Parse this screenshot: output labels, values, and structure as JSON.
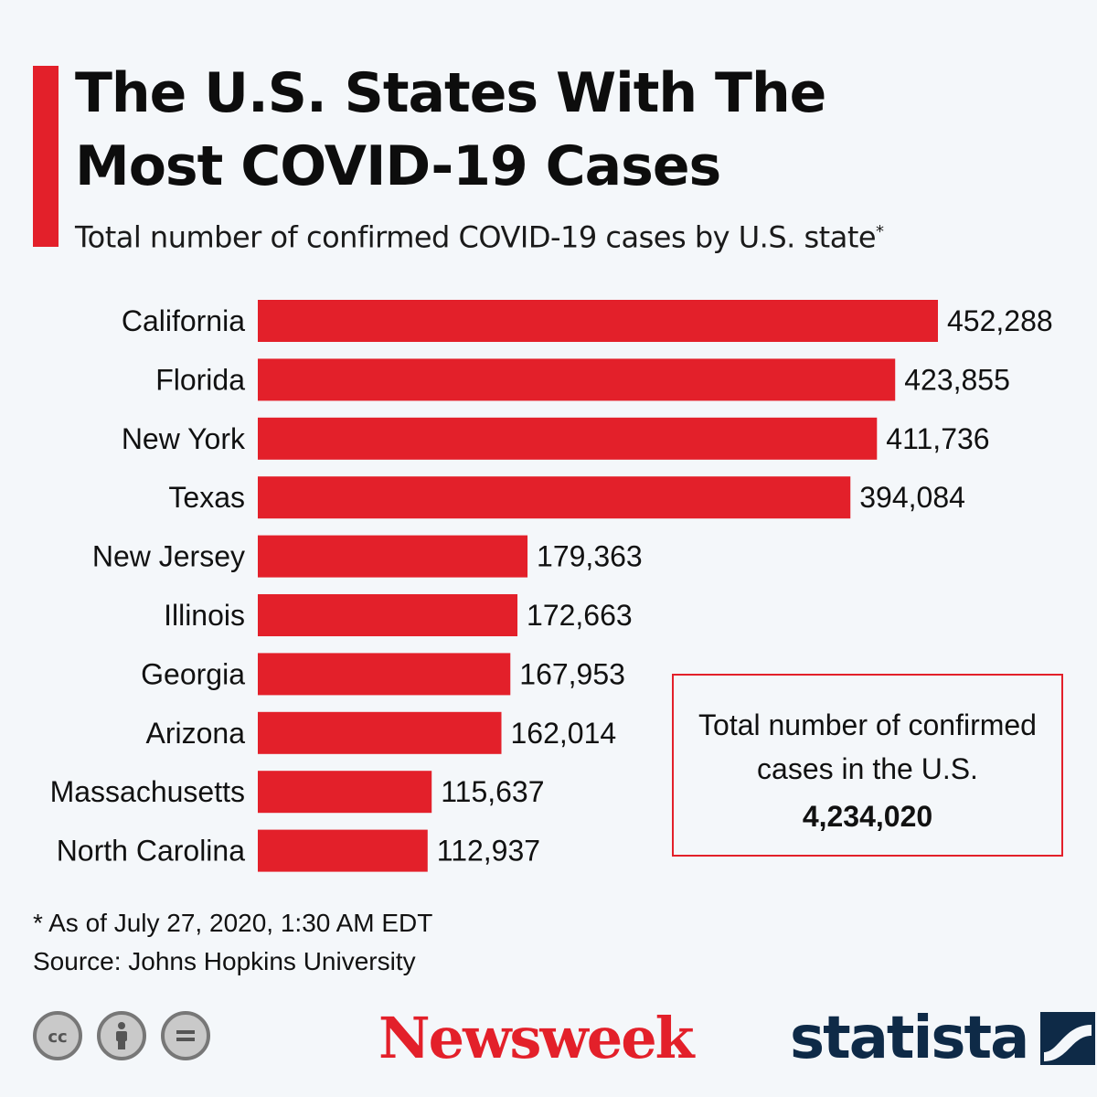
{
  "header": {
    "title": "The U.S. States With The Most COVID-19 Cases",
    "subtitle": "Total number of confirmed COVID-19 cases by U.S. state",
    "subtitle_mark": "*"
  },
  "chart_data": {
    "type": "bar",
    "orientation": "horizontal",
    "categories": [
      "California",
      "Florida",
      "New York",
      "Texas",
      "New Jersey",
      "Illinois",
      "Georgia",
      "Arizona",
      "Massachusetts",
      "North Carolina"
    ],
    "values": [
      452288,
      423855,
      411736,
      394084,
      179363,
      172663,
      167953,
      162014,
      115637,
      112937
    ],
    "value_labels": [
      "452,288",
      "423,855",
      "411,736",
      "394,084",
      "179,363",
      "172,663",
      "167,953",
      "162,014",
      "115,637",
      "112,937"
    ],
    "bar_color": "#e3202a",
    "xlim": [
      0,
      452288
    ],
    "grid": false
  },
  "total_box": {
    "label": "Total number of confirmed cases in the U.S.",
    "value": "4,234,020"
  },
  "footer": {
    "footnote": "* As of July 27, 2020, 1:30 AM EDT",
    "source": "Source: Johns Hopkins University",
    "license_icons": [
      "cc-icon",
      "attribution-icon",
      "no-derivatives-icon"
    ],
    "brand_newsweek": "Newsweek",
    "brand_statista": "statista"
  },
  "colors": {
    "accent": "#e3202a",
    "background": "#f4f7fa",
    "statista_navy": "#0e2a47"
  }
}
